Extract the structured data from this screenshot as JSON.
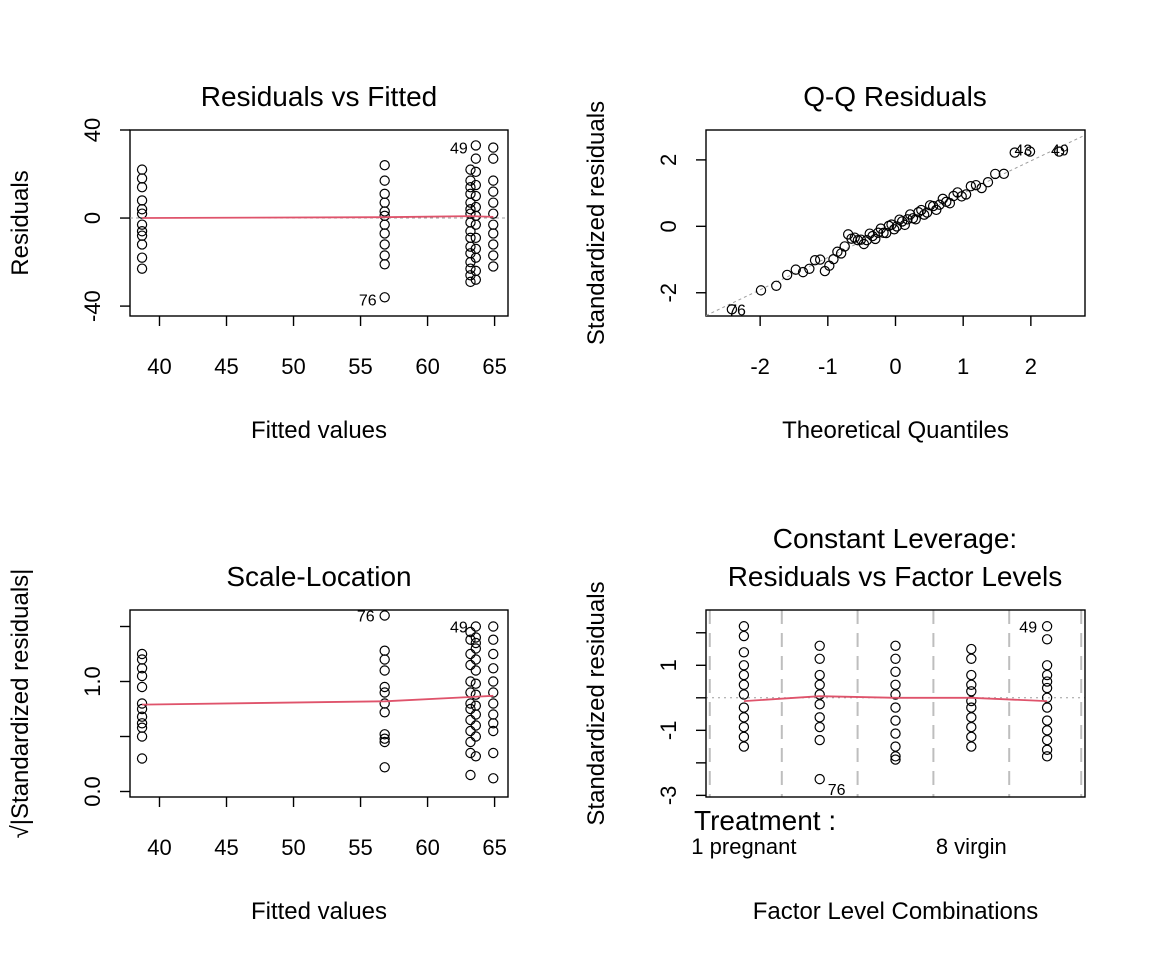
{
  "chart_data": [
    {
      "type": "scatter",
      "title": "Residuals vs Fitted",
      "xlabel": "Fitted values",
      "ylabel": "Residuals",
      "xlim": [
        37.8,
        66
      ],
      "ylim": [
        -44.5,
        40
      ],
      "xticks": [
        40,
        45,
        50,
        55,
        60,
        65
      ],
      "yticks": [
        -40,
        0,
        40
      ],
      "groups": [
        {
          "x": 38.7,
          "y": [
            22,
            18,
            14,
            8,
            4,
            2,
            -3,
            -6,
            -8,
            -12,
            -18,
            -23
          ]
        },
        {
          "x": 56.8,
          "y": [
            24,
            17,
            11,
            7,
            3,
            1,
            -3,
            -7,
            -12,
            -17,
            -21,
            -36
          ]
        },
        {
          "x": 63.2,
          "y": [
            22,
            17,
            14,
            11,
            7,
            4,
            2,
            -2,
            -6,
            -9,
            -13,
            -16,
            -20,
            -23,
            -26,
            -29
          ]
        },
        {
          "x": 63.6,
          "y": [
            33,
            27,
            21,
            15,
            10,
            5,
            1,
            -3,
            -9,
            -14,
            -18,
            -24,
            -28
          ]
        },
        {
          "x": 64.9,
          "y": [
            32,
            27,
            17,
            12,
            7,
            2,
            -3,
            -7,
            -12,
            -17,
            -22
          ]
        }
      ],
      "smoother": [
        [
          38.7,
          0
        ],
        [
          56.8,
          0.4
        ],
        [
          63.2,
          0.9
        ],
        [
          64.9,
          0.5
        ]
      ],
      "reference_y": 0,
      "labels": [
        {
          "text": "49",
          "x": 63.6,
          "y": 32
        },
        {
          "text": "76",
          "x": 56.8,
          "y": -36
        }
      ]
    },
    {
      "type": "scatter",
      "title": "Q-Q Residuals",
      "xlabel": "Theoretical Quantiles",
      "ylabel": "Standardized residuals",
      "xlim": [
        -2.8,
        2.8
      ],
      "ylim": [
        -2.7,
        2.9
      ],
      "xticks": [
        -2,
        -1,
        0,
        1,
        2
      ],
      "yticks": [
        -2,
        0,
        2
      ],
      "n_points": 64,
      "reference_line": {
        "slope": 0.97,
        "intercept": 0.03
      },
      "labels": [
        {
          "text": "43",
          "x": 2.05,
          "y": 2.25
        },
        {
          "text": "49",
          "x": 2.65,
          "y": 2.25
        },
        {
          "text": "76",
          "x": -2.65,
          "y": -2.5
        }
      ]
    },
    {
      "type": "scatter",
      "title": "Scale-Location",
      "xlabel": "Fitted values",
      "ylabel": "√|Standardized residuals|",
      "xlim": [
        37.8,
        66
      ],
      "ylim": [
        -0.05,
        1.65
      ],
      "xticks": [
        40,
        45,
        50,
        55,
        60,
        65
      ],
      "yticks": [
        0.0,
        1.0
      ],
      "ytick_labels": [
        "0.0",
        "1.0"
      ],
      "groups": [
        {
          "x": 38.7,
          "y": [
            1.25,
            1.2,
            1.12,
            1.05,
            0.95,
            0.8,
            0.75,
            0.68,
            0.62,
            0.58,
            0.5,
            0.3
          ]
        },
        {
          "x": 56.8,
          "y": [
            1.6,
            1.28,
            1.2,
            1.1,
            0.95,
            0.9,
            0.8,
            0.72,
            0.52,
            0.48,
            0.45,
            0.22
          ]
        },
        {
          "x": 63.2,
          "y": [
            1.45,
            1.38,
            1.25,
            1.15,
            1.0,
            0.9,
            0.8,
            0.75,
            0.65,
            0.55,
            0.45,
            0.35,
            0.15
          ]
        },
        {
          "x": 63.6,
          "y": [
            1.5,
            1.4,
            1.35,
            1.3,
            1.2,
            1.1,
            0.98,
            0.88,
            0.78,
            0.7,
            0.6,
            0.5,
            0.32
          ]
        },
        {
          "x": 64.9,
          "y": [
            1.5,
            1.38,
            1.25,
            1.12,
            1.0,
            0.9,
            0.8,
            0.7,
            0.62,
            0.55,
            0.35,
            0.12
          ]
        }
      ],
      "smoother": [
        [
          38.7,
          0.79
        ],
        [
          56.8,
          0.82
        ],
        [
          63.4,
          0.86
        ],
        [
          64.9,
          0.87
        ]
      ],
      "labels": [
        {
          "text": "76",
          "x": 56.8,
          "y": 1.6
        },
        {
          "text": "49",
          "x": 63.6,
          "y": 1.5
        }
      ]
    },
    {
      "type": "scatter",
      "title": "Constant Leverage:\nResiduals vs Factor Levels",
      "title_lines": [
        "Constant Leverage:",
        "Residuals vs Factor Levels"
      ],
      "xlabel": "Factor Level Combinations",
      "ylabel": "Standardized residuals",
      "xlim": [
        0.5,
        5.5
      ],
      "ylim": [
        -3.05,
        2.7
      ],
      "yticks": [
        -3,
        -1,
        1
      ],
      "factor_title": "Treatment :",
      "factor_levels": [
        "1 pregnant",
        "8 virgin"
      ],
      "factor_level_x": [
        1,
        4
      ],
      "groups": [
        {
          "x": 1,
          "y": [
            2.2,
            1.9,
            1.4,
            1.0,
            0.7,
            0.4,
            0.1,
            -0.3,
            -0.6,
            -0.9,
            -1.2,
            -1.5
          ]
        },
        {
          "x": 2,
          "y": [
            1.6,
            1.2,
            0.7,
            0.4,
            0.1,
            -0.2,
            -0.6,
            -0.9,
            -1.3,
            -2.5
          ]
        },
        {
          "x": 3,
          "y": [
            1.6,
            1.2,
            0.8,
            0.4,
            0.1,
            -0.3,
            -0.7,
            -1.1,
            -1.5,
            -1.8,
            -1.9
          ]
        },
        {
          "x": 4,
          "y": [
            1.5,
            1.2,
            0.7,
            0.4,
            0.2,
            -0.1,
            -0.3,
            -0.6,
            -0.9,
            -1.2,
            -1.5
          ]
        },
        {
          "x": 5,
          "y": [
            2.2,
            1.8,
            1.0,
            0.7,
            0.5,
            0.3,
            0.0,
            -0.3,
            -0.7,
            -1.0,
            -1.3,
            -1.6,
            -1.8
          ]
        }
      ],
      "smoother": [
        [
          1,
          -0.1
        ],
        [
          2,
          0.05
        ],
        [
          3,
          0.0
        ],
        [
          4,
          0.0
        ],
        [
          5,
          -0.1
        ]
      ],
      "reference_y": 0,
      "labels": [
        {
          "text": "49",
          "x": 5,
          "y": 2.2
        },
        {
          "text": "76",
          "x": 2,
          "y": -2.5
        }
      ]
    }
  ]
}
